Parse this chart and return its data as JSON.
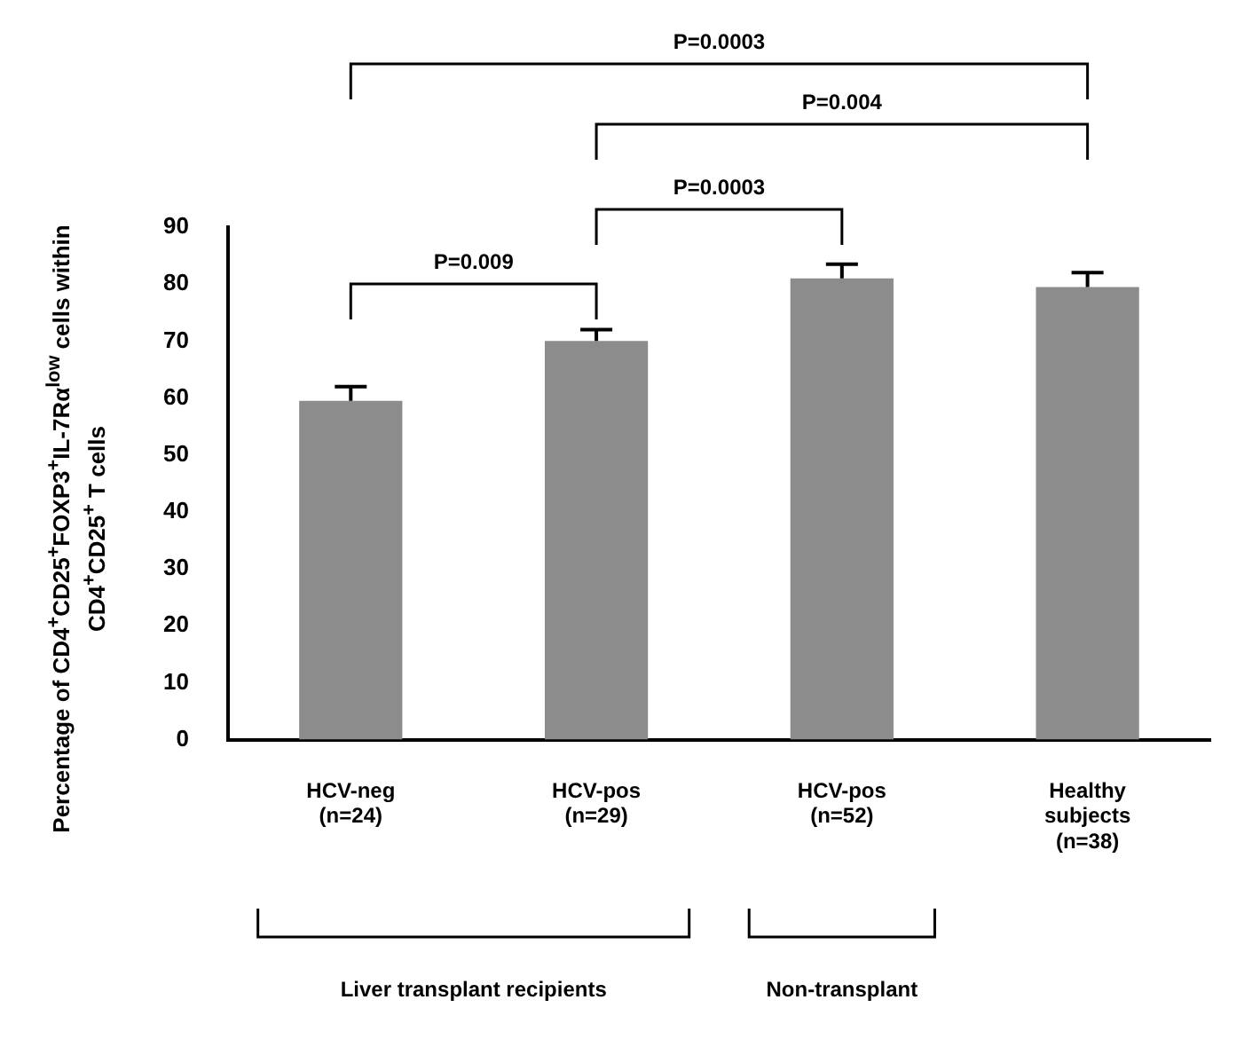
{
  "chart_data": {
    "type": "bar",
    "ylabel": "Percentage of CD4$^{+}$CD25$^{+}$FOXP3$^{+}$IL-7Rα$^{low}$ cells within CD4$^{+}$CD25$^{+}$ T cells",
    "categories": [
      "HCV-neg\n(n=24)",
      "HCV-pos\n(n=29)",
      "HCV-pos\n(n=52)",
      "Healthy\nsubjects\n(n=38)"
    ],
    "values": [
      59.5,
      70,
      81,
      79.5
    ],
    "errors": [
      [
        59.5,
        62
      ],
      [
        70,
        72
      ],
      [
        81,
        83.5
      ],
      [
        79.5,
        82
      ]
    ],
    "color": "#8c8c8c",
    "ylim": [
      0,
      90
    ],
    "yticks": [
      0,
      10,
      20,
      30,
      40,
      50,
      60,
      70,
      80,
      90
    ],
    "annotations": [
      "P=0.0003",
      "P=0.004",
      "P=0.0003",
      "P=0.009",
      "Liver transplant recipients",
      "Non-transplant"
    ]
  }
}
